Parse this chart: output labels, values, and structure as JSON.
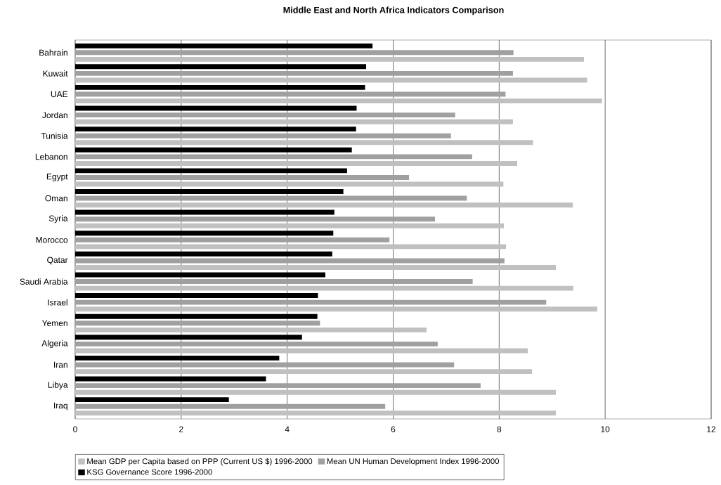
{
  "chart_data": {
    "type": "bar",
    "orientation": "horizontal",
    "title": "Middle East and North Africa Indicators Comparison",
    "categories": [
      "Bahrain",
      "Kuwait",
      "UAE",
      "Jordan",
      "Tunisia",
      "Lebanon",
      "Egypt",
      "Oman",
      "Syria",
      "Morocco",
      "Qatar",
      "Saudi Arabia",
      "Israel",
      "Yemen",
      "Algeria",
      "Iran",
      "Libya",
      "Iraq"
    ],
    "series": [
      {
        "name": "Mean GDP per Capita based on PPP (Current US $) 1996-2000",
        "color": "#c0c0c0",
        "values": [
          9.6,
          9.66,
          9.94,
          8.26,
          8.64,
          8.34,
          8.08,
          9.39,
          8.09,
          8.13,
          9.07,
          9.4,
          9.85,
          6.63,
          8.54,
          8.62,
          9.07,
          9.07
        ]
      },
      {
        "name": "Mean UN Human Development Index 1996-2000",
        "color": "#a0a0a0",
        "values": [
          8.27,
          8.26,
          8.12,
          7.17,
          7.09,
          7.49,
          6.3,
          7.39,
          6.79,
          5.93,
          8.1,
          7.5,
          8.89,
          4.62,
          6.84,
          7.15,
          7.65,
          5.85
        ]
      },
      {
        "name": "KSG Governance Score 1996-2000",
        "color": "#000000",
        "values": [
          5.61,
          5.49,
          5.47,
          5.31,
          5.3,
          5.22,
          5.13,
          5.06,
          4.89,
          4.87,
          4.85,
          4.72,
          4.58,
          4.57,
          4.28,
          3.85,
          3.6,
          2.9
        ]
      }
    ],
    "xlim": [
      0,
      12
    ],
    "xticks": [
      0,
      2,
      4,
      6,
      8,
      10,
      12
    ],
    "grid": "x",
    "legend": "bottom"
  }
}
